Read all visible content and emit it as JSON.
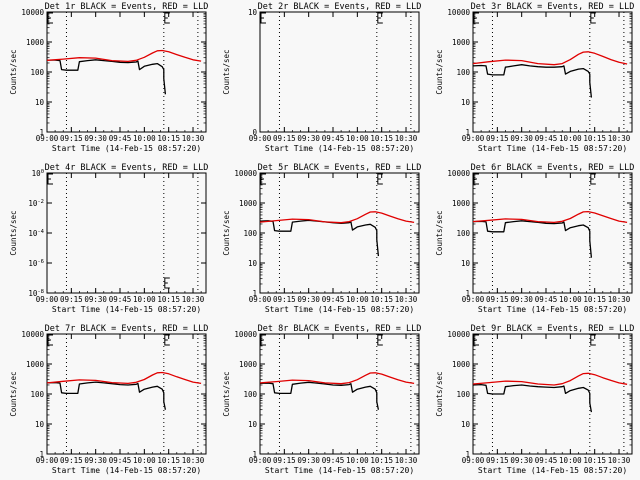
{
  "figure": {
    "background": "#f8f8f8",
    "events_color": "#000000",
    "lld_color": "#e00000"
  },
  "chart_data": [
    {
      "type": "line",
      "title": "Det 1r BLACK = Events, RED = LLD",
      "xlabel": "Start Time (14-Feb-15 08:57:20)",
      "ylabel": "Counts/sec",
      "xlim": [
        "09:00",
        "10:38"
      ],
      "xticks": [
        "09:00",
        "09:15",
        "09:30",
        "09:45",
        "10:00",
        "10:15",
        "10:30"
      ],
      "yscale": "log",
      "ylim": [
        1,
        10000
      ],
      "yticks": [
        "1",
        "10",
        "100",
        "1000",
        "10000"
      ],
      "vlines": [
        "09:12",
        "10:12",
        "10:33"
      ],
      "markers": [
        "09:00",
        "10:12"
      ],
      "series": [
        {
          "name": "Events",
          "color": "#000000",
          "x": [
            "09:00",
            "09:05",
            "09:08",
            "09:09",
            "09:12",
            "09:14",
            "09:15",
            "09:19",
            "09:20",
            "09:25",
            "09:30",
            "09:35",
            "09:40",
            "09:45",
            "09:50",
            "09:55",
            "09:56",
            "09:57",
            "10:00",
            "10:05",
            "10:08",
            "10:11",
            "10:12",
            "10:12",
            "10:13"
          ],
          "y": [
            250,
            250,
            240,
            120,
            115,
            115,
            115,
            115,
            220,
            240,
            255,
            240,
            225,
            210,
            205,
            215,
            230,
            120,
            155,
            180,
            190,
            150,
            120,
            60,
            18
          ]
        },
        {
          "name": "LLD",
          "color": "#e00000",
          "x": [
            "09:00",
            "09:10",
            "09:20",
            "09:30",
            "09:40",
            "09:50",
            "09:55",
            "10:00",
            "10:05",
            "10:08",
            "10:11",
            "10:15",
            "10:20",
            "10:25",
            "10:30",
            "10:35"
          ],
          "y": [
            245,
            270,
            300,
            290,
            240,
            225,
            245,
            310,
            430,
            510,
            520,
            470,
            380,
            310,
            255,
            230
          ]
        }
      ]
    },
    {
      "type": "line",
      "title": "Det 2r BLACK = Events, RED = LLD",
      "xlabel": "Start Time (14-Feb-15 08:57:20)",
      "ylabel": "Counts/sec",
      "xlim": [
        "09:00",
        "10:38"
      ],
      "xticks": [
        "09:00",
        "09:15",
        "09:30",
        "09:45",
        "10:00",
        "10:15",
        "10:30"
      ],
      "yscale": "linear",
      "ylim": [
        0,
        10
      ],
      "yticks": [
        "0",
        "10"
      ],
      "vlines": [
        "09:12",
        "10:12",
        "10:33"
      ],
      "markers": [
        "09:00",
        "10:12"
      ],
      "series": []
    },
    {
      "type": "line",
      "title": "Det 3r BLACK = Events, RED = LLD",
      "xlabel": "Start Time (14-Feb-15 08:57:20)",
      "ylabel": "Counts/sec",
      "xlim": [
        "09:00",
        "10:38"
      ],
      "xticks": [
        "09:00",
        "09:15",
        "09:30",
        "09:45",
        "10:00",
        "10:15",
        "10:30"
      ],
      "yscale": "log",
      "ylim": [
        1,
        10000
      ],
      "yticks": [
        "1",
        "10",
        "100",
        "1000",
        "10000"
      ],
      "vlines": [
        "09:12",
        "10:12",
        "10:33"
      ],
      "markers": [
        "09:00",
        "10:12"
      ],
      "series": [
        {
          "name": "Events",
          "color": "#000000",
          "x": [
            "09:00",
            "09:05",
            "09:08",
            "09:09",
            "09:12",
            "09:14",
            "09:15",
            "09:19",
            "09:20",
            "09:25",
            "09:30",
            "09:35",
            "09:40",
            "09:45",
            "09:50",
            "09:55",
            "09:56",
            "09:57",
            "10:00",
            "10:05",
            "10:08",
            "10:11",
            "10:12",
            "10:12",
            "10:13"
          ],
          "y": [
            160,
            165,
            160,
            85,
            80,
            80,
            80,
            80,
            145,
            160,
            175,
            160,
            150,
            145,
            145,
            150,
            160,
            85,
            105,
            125,
            130,
            105,
            85,
            45,
            14
          ]
        },
        {
          "name": "LLD",
          "color": "#e00000",
          "x": [
            "09:00",
            "09:10",
            "09:20",
            "09:30",
            "09:40",
            "09:50",
            "09:55",
            "10:00",
            "10:05",
            "10:08",
            "10:11",
            "10:15",
            "10:20",
            "10:25",
            "10:30",
            "10:35"
          ],
          "y": [
            190,
            220,
            250,
            240,
            190,
            175,
            190,
            260,
            390,
            460,
            470,
            420,
            330,
            260,
            210,
            185
          ]
        }
      ]
    },
    {
      "type": "line",
      "title": "Det 4r BLACK = Events, RED = LLD",
      "xlabel": "Start Time (14-Feb-15 08:57:20)",
      "ylabel": "Counts/sec",
      "xlim": [
        "09:00",
        "10:38"
      ],
      "xticks": [
        "09:00",
        "09:15",
        "09:30",
        "09:45",
        "10:00",
        "10:15",
        "10:30"
      ],
      "yscale": "log",
      "ylim": [
        "10^0",
        "10^-8"
      ],
      "yticks": [
        "10^-8",
        "10^-6",
        "10^-4",
        "10^-2",
        "10^0"
      ],
      "vlines": [
        "09:12",
        "10:12",
        "10:33"
      ],
      "markers": [
        "09:00",
        "10:12"
      ],
      "series": []
    },
    {
      "type": "line",
      "title": "Det 5r BLACK = Events, RED = LLD",
      "xlabel": "Start Time (14-Feb-15 08:57:20)",
      "ylabel": "Counts/sec",
      "xlim": [
        "09:00",
        "10:38"
      ],
      "xticks": [
        "09:00",
        "09:15",
        "09:30",
        "09:45",
        "10:00",
        "10:15",
        "10:30"
      ],
      "yscale": "log",
      "ylim": [
        1,
        10000
      ],
      "yticks": [
        "1",
        "10",
        "100",
        "1000",
        "10000"
      ],
      "vlines": [
        "09:12",
        "10:12",
        "10:33"
      ],
      "markers": [
        "09:00",
        "10:12"
      ],
      "series": [
        {
          "name": "Events",
          "color": "#000000",
          "x": [
            "09:00",
            "09:05",
            "09:08",
            "09:09",
            "09:12",
            "09:14",
            "09:15",
            "09:19",
            "09:20",
            "09:25",
            "09:30",
            "09:35",
            "09:40",
            "09:45",
            "09:50",
            "09:55",
            "09:56",
            "09:57",
            "10:00",
            "10:05",
            "10:08",
            "10:11",
            "10:12",
            "10:12",
            "10:13"
          ],
          "y": [
            250,
            255,
            245,
            120,
            115,
            115,
            115,
            115,
            230,
            250,
            265,
            250,
            235,
            220,
            210,
            220,
            235,
            125,
            160,
            185,
            195,
            155,
            120,
            60,
            17
          ]
        },
        {
          "name": "LLD",
          "color": "#e00000",
          "x": [
            "09:00",
            "09:10",
            "09:20",
            "09:30",
            "09:40",
            "09:50",
            "09:55",
            "10:00",
            "10:05",
            "10:08",
            "10:11",
            "10:15",
            "10:20",
            "10:25",
            "10:30",
            "10:35"
          ],
          "y": [
            230,
            260,
            290,
            280,
            235,
            220,
            240,
            300,
            420,
            500,
            510,
            460,
            370,
            300,
            250,
            225
          ]
        }
      ]
    },
    {
      "type": "line",
      "title": "Det 6r BLACK = Events, RED = LLD",
      "xlabel": "Start Time (14-Feb-15 08:57:20)",
      "ylabel": "Counts/sec",
      "xlim": [
        "09:00",
        "10:38"
      ],
      "xticks": [
        "09:00",
        "09:15",
        "09:30",
        "09:45",
        "10:00",
        "10:15",
        "10:30"
      ],
      "yscale": "log",
      "ylim": [
        1,
        10000
      ],
      "yticks": [
        "1",
        "10",
        "100",
        "1000",
        "10000"
      ],
      "vlines": [
        "09:12",
        "10:12",
        "10:33"
      ],
      "markers": [
        "09:00",
        "10:12"
      ],
      "series": [
        {
          "name": "Events",
          "color": "#000000",
          "x": [
            "09:00",
            "09:05",
            "09:08",
            "09:09",
            "09:12",
            "09:14",
            "09:15",
            "09:19",
            "09:20",
            "09:25",
            "09:30",
            "09:35",
            "09:40",
            "09:45",
            "09:50",
            "09:55",
            "09:56",
            "09:57",
            "10:00",
            "10:05",
            "10:08",
            "10:11",
            "10:12",
            "10:12",
            "10:13"
          ],
          "y": [
            240,
            245,
            235,
            115,
            110,
            110,
            110,
            110,
            220,
            240,
            255,
            240,
            225,
            210,
            205,
            215,
            230,
            120,
            150,
            175,
            185,
            150,
            115,
            55,
            15
          ]
        },
        {
          "name": "LLD",
          "color": "#e00000",
          "x": [
            "09:00",
            "09:10",
            "09:20",
            "09:30",
            "09:40",
            "09:50",
            "09:55",
            "10:00",
            "10:05",
            "10:08",
            "10:11",
            "10:15",
            "10:20",
            "10:25",
            "10:30",
            "10:35"
          ],
          "y": [
            240,
            265,
            295,
            285,
            240,
            225,
            245,
            305,
            425,
            505,
            515,
            465,
            375,
            305,
            250,
            225
          ]
        }
      ]
    },
    {
      "type": "line",
      "title": "Det 7r BLACK = Events, RED = LLD",
      "xlabel": "Start Time (14-Feb-15 08:57:20)",
      "ylabel": "Counts/sec",
      "xlim": [
        "09:00",
        "10:38"
      ],
      "xticks": [
        "09:00",
        "09:15",
        "09:30",
        "09:45",
        "10:00",
        "10:15",
        "10:30"
      ],
      "yscale": "log",
      "ylim": [
        1,
        10000
      ],
      "yticks": [
        "1",
        "10",
        "100",
        "1000",
        "10000"
      ],
      "vlines": [
        "09:12",
        "10:12",
        "10:33"
      ],
      "markers": [
        "09:00",
        "10:12"
      ],
      "series": [
        {
          "name": "Events",
          "color": "#000000",
          "x": [
            "09:00",
            "09:05",
            "09:08",
            "09:09",
            "09:12",
            "09:14",
            "09:15",
            "09:19",
            "09:20",
            "09:25",
            "09:30",
            "09:35",
            "09:40",
            "09:45",
            "09:50",
            "09:55",
            "09:56",
            "09:57",
            "10:00",
            "10:05",
            "10:08",
            "10:11",
            "10:12",
            "10:12",
            "10:13"
          ],
          "y": [
            235,
            240,
            230,
            110,
            105,
            105,
            105,
            105,
            215,
            235,
            250,
            235,
            220,
            205,
            200,
            210,
            225,
            115,
            145,
            170,
            180,
            145,
            110,
            55,
            30
          ]
        },
        {
          "name": "LLD",
          "color": "#e00000",
          "x": [
            "09:00",
            "09:10",
            "09:20",
            "09:30",
            "09:40",
            "09:50",
            "09:55",
            "10:00",
            "10:05",
            "10:08",
            "10:11",
            "10:15",
            "10:20",
            "10:25",
            "10:30",
            "10:35"
          ],
          "y": [
            235,
            265,
            295,
            285,
            240,
            225,
            245,
            305,
            430,
            510,
            520,
            470,
            375,
            305,
            250,
            225
          ]
        }
      ]
    },
    {
      "type": "line",
      "title": "Det 8r BLACK = Events, RED = LLD",
      "xlabel": "Start Time (14-Feb-15 08:57:20)",
      "ylabel": "Counts/sec",
      "xlim": [
        "09:00",
        "10:38"
      ],
      "xticks": [
        "09:00",
        "09:15",
        "09:30",
        "09:45",
        "10:00",
        "10:15",
        "10:30"
      ],
      "yscale": "log",
      "ylim": [
        1,
        10000
      ],
      "yticks": [
        "1",
        "10",
        "100",
        "1000",
        "10000"
      ],
      "vlines": [
        "09:12",
        "10:12",
        "10:33"
      ],
      "markers": [
        "09:00",
        "10:12"
      ],
      "series": [
        {
          "name": "Events",
          "color": "#000000",
          "x": [
            "09:00",
            "09:05",
            "09:08",
            "09:09",
            "09:12",
            "09:14",
            "09:15",
            "09:19",
            "09:20",
            "09:25",
            "09:30",
            "09:35",
            "09:40",
            "09:45",
            "09:50",
            "09:55",
            "09:56",
            "09:57",
            "10:00",
            "10:05",
            "10:08",
            "10:11",
            "10:12",
            "10:12",
            "10:13"
          ],
          "y": [
            225,
            230,
            220,
            110,
            105,
            105,
            105,
            105,
            210,
            230,
            245,
            230,
            215,
            200,
            195,
            205,
            220,
            115,
            145,
            170,
            180,
            145,
            110,
            55,
            30
          ]
        },
        {
          "name": "LLD",
          "color": "#e00000",
          "x": [
            "09:00",
            "09:10",
            "09:20",
            "09:30",
            "09:40",
            "09:50",
            "09:55",
            "10:00",
            "10:05",
            "10:08",
            "10:11",
            "10:15",
            "10:20",
            "10:25",
            "10:30",
            "10:35"
          ],
          "y": [
            235,
            260,
            290,
            280,
            235,
            220,
            240,
            300,
            420,
            500,
            510,
            460,
            370,
            300,
            250,
            225
          ]
        }
      ]
    },
    {
      "type": "line",
      "title": "Det 9r BLACK = Events, RED = LLD",
      "xlabel": "Start Time (14-Feb-15 08:57:20)",
      "ylabel": "Counts/sec",
      "xlim": [
        "09:00",
        "10:38"
      ],
      "xticks": [
        "09:00",
        "09:15",
        "09:30",
        "09:45",
        "10:00",
        "10:15",
        "10:30"
      ],
      "yscale": "log",
      "ylim": [
        1,
        10000
      ],
      "yticks": [
        "1",
        "10",
        "100",
        "1000",
        "10000"
      ],
      "vlines": [
        "09:12",
        "10:12",
        "10:33"
      ],
      "markers": [
        "09:00",
        "10:12"
      ],
      "series": [
        {
          "name": "Events",
          "color": "#000000",
          "x": [
            "09:00",
            "09:05",
            "09:08",
            "09:09",
            "09:12",
            "09:14",
            "09:15",
            "09:19",
            "09:20",
            "09:25",
            "09:30",
            "09:35",
            "09:40",
            "09:45",
            "09:50",
            "09:55",
            "09:56",
            "09:57",
            "10:00",
            "10:05",
            "10:08",
            "10:11",
            "10:12",
            "10:12",
            "10:13"
          ],
          "y": [
            200,
            205,
            195,
            105,
            100,
            100,
            100,
            100,
            175,
            190,
            200,
            185,
            175,
            170,
            165,
            175,
            185,
            105,
            130,
            155,
            165,
            135,
            105,
            50,
            25
          ]
        },
        {
          "name": "LLD",
          "color": "#e00000",
          "x": [
            "09:00",
            "09:10",
            "09:20",
            "09:30",
            "09:40",
            "09:50",
            "09:55",
            "10:00",
            "10:05",
            "10:08",
            "10:11",
            "10:15",
            "10:20",
            "10:25",
            "10:30",
            "10:35"
          ],
          "y": [
            215,
            240,
            270,
            260,
            215,
            200,
            220,
            280,
            400,
            480,
            490,
            440,
            350,
            285,
            235,
            210
          ]
        }
      ]
    }
  ]
}
